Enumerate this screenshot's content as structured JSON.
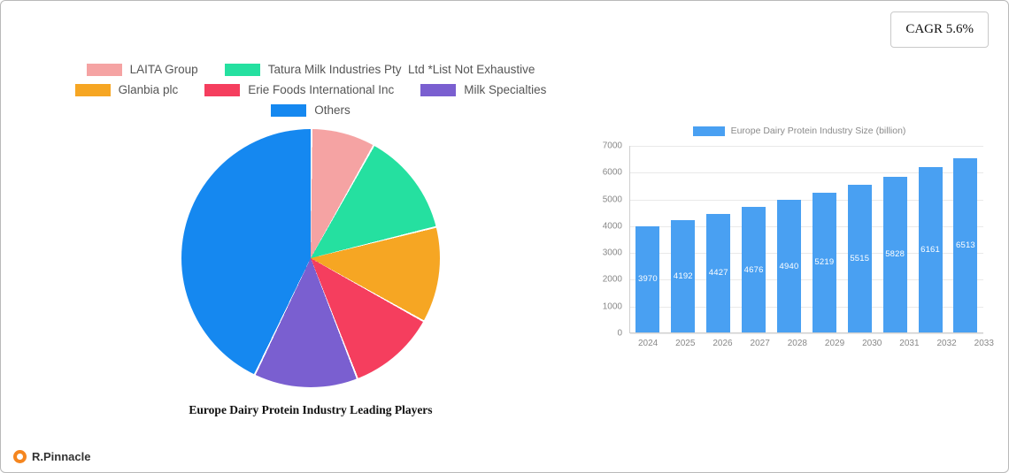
{
  "cagr_badge": "CAGR 5.6%",
  "brand": {
    "name": "R.Pinnacle"
  },
  "chart_data": [
    {
      "type": "pie",
      "title": "Europe Dairy Protein Industry Leading Players",
      "labels": [
        "LAITA Group",
        "Tatura Milk Industries Pty  Ltd *List Not Exhaustive",
        "Glanbia plc",
        "Erie Foods International Inc",
        "Milk Specialties",
        "Others"
      ],
      "values": [
        8,
        13,
        12,
        11,
        13,
        43
      ],
      "colors": [
        "#f5a3a3",
        "#25e0a0",
        "#f6a623",
        "#f53e5e",
        "#7a5fd0",
        "#1588f0"
      ],
      "legend_rows": [
        [
          0,
          1
        ],
        [
          2,
          3,
          4
        ],
        [
          5
        ]
      ],
      "legend_position": "top"
    },
    {
      "type": "bar",
      "legend": "Europe Dairy Protein Industry Size (billion)",
      "categories": [
        "2024",
        "2025",
        "2026",
        "2027",
        "2028",
        "2029",
        "2030",
        "2031",
        "2032",
        "2033"
      ],
      "values": [
        3970,
        4192,
        4427,
        4676,
        4940,
        5219,
        5515,
        5828,
        6161,
        6513
      ],
      "bar_color": "#49a0f2",
      "ylim": [
        0,
        7000
      ],
      "yticks": [
        0,
        1000,
        2000,
        3000,
        4000,
        5000,
        6000,
        7000
      ],
      "grid": true,
      "legend_position": "top"
    }
  ]
}
